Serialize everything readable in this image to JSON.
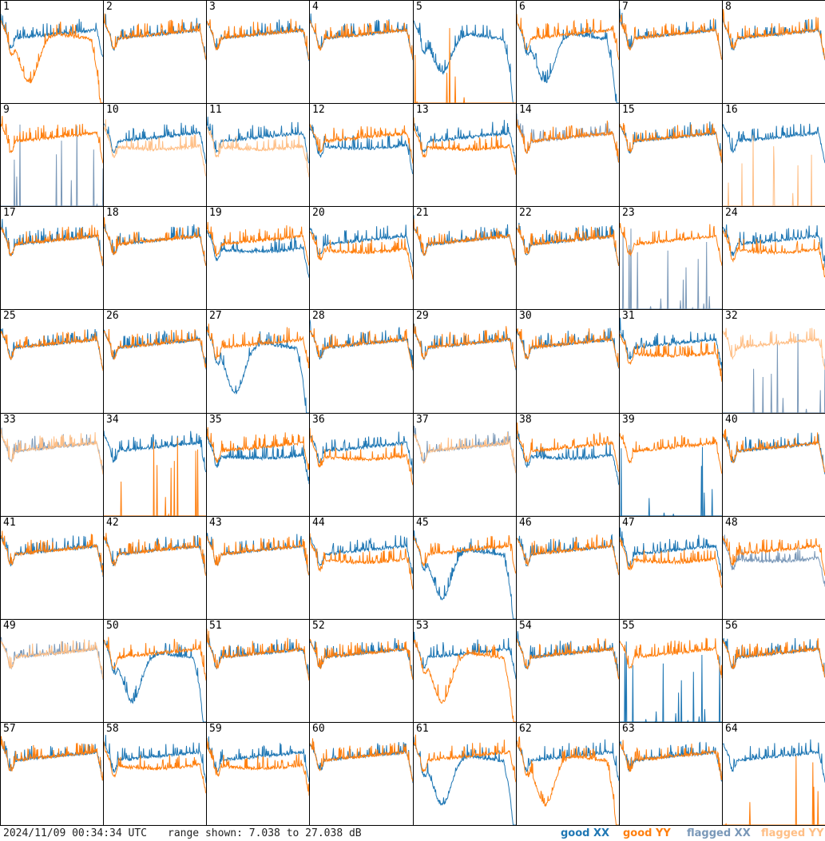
{
  "footer": {
    "timestamp": "2024/11/09 00:34:34 UTC",
    "range": "range shown: 7.038 to 27.038 dB"
  },
  "legend": {
    "good_xx": "good XX",
    "good_yy": "good YY",
    "flagged_xx": "flagged XX",
    "flagged_yy": "flagged YY"
  },
  "colors": {
    "good_xx": "#1f77b4",
    "good_yy": "#ff7f0e",
    "flagged_xx": "#7a98b8",
    "flagged_yy": "#ffbf86"
  },
  "chart_data": {
    "type": "line",
    "panel_grid": "8x8",
    "y_range_db": [
      7.038,
      27.038
    ],
    "panels": [
      {
        "label": "1",
        "xx": "good",
        "yy": "good",
        "shape": "yy_dip"
      },
      {
        "label": "2",
        "xx": "good",
        "yy": "good",
        "shape": "normal"
      },
      {
        "label": "3",
        "xx": "good",
        "yy": "good",
        "shape": "normal"
      },
      {
        "label": "4",
        "xx": "good",
        "yy": "good",
        "shape": "normal"
      },
      {
        "label": "5",
        "xx": "good",
        "yy": "good",
        "shape": "xx_dip_yy_dead"
      },
      {
        "label": "6",
        "xx": "good",
        "yy": "good",
        "shape": "xx_dip"
      },
      {
        "label": "7",
        "xx": "good",
        "yy": "good",
        "shape": "normal"
      },
      {
        "label": "8",
        "xx": "good",
        "yy": "good",
        "shape": "normal"
      },
      {
        "label": "9",
        "xx": "flagged",
        "yy": "good",
        "shape": "xx_dead"
      },
      {
        "label": "10",
        "xx": "good",
        "yy": "flagged",
        "shape": "yy_low"
      },
      {
        "label": "11",
        "xx": "good",
        "yy": "flagged",
        "shape": "yy_low"
      },
      {
        "label": "12",
        "xx": "good",
        "yy": "good",
        "shape": "xx_low"
      },
      {
        "label": "13",
        "xx": "good",
        "yy": "good",
        "shape": "yy_low"
      },
      {
        "label": "14",
        "xx": "flagged",
        "yy": "good",
        "shape": "normal"
      },
      {
        "label": "15",
        "xx": "good",
        "yy": "good",
        "shape": "normal"
      },
      {
        "label": "16",
        "xx": "good",
        "yy": "flagged",
        "shape": "yy_dead"
      },
      {
        "label": "17",
        "xx": "good",
        "yy": "good",
        "shape": "normal"
      },
      {
        "label": "18",
        "xx": "good",
        "yy": "good",
        "shape": "normal"
      },
      {
        "label": "19",
        "xx": "good",
        "yy": "good",
        "shape": "xx_low"
      },
      {
        "label": "20",
        "xx": "good",
        "yy": "good",
        "shape": "yy_low"
      },
      {
        "label": "21",
        "xx": "good",
        "yy": "good",
        "shape": "normal"
      },
      {
        "label": "22",
        "xx": "good",
        "yy": "good",
        "shape": "normal"
      },
      {
        "label": "23",
        "xx": "flagged",
        "yy": "good",
        "shape": "xx_dead"
      },
      {
        "label": "24",
        "xx": "good",
        "yy": "good",
        "shape": "yy_low"
      },
      {
        "label": "25",
        "xx": "good",
        "yy": "good",
        "shape": "normal"
      },
      {
        "label": "26",
        "xx": "good",
        "yy": "good",
        "shape": "normal"
      },
      {
        "label": "27",
        "xx": "good",
        "yy": "good",
        "shape": "xx_dip"
      },
      {
        "label": "28",
        "xx": "good",
        "yy": "good",
        "shape": "normal"
      },
      {
        "label": "29",
        "xx": "good",
        "yy": "good",
        "shape": "normal"
      },
      {
        "label": "30",
        "xx": "good",
        "yy": "good",
        "shape": "normal"
      },
      {
        "label": "31",
        "xx": "good",
        "yy": "good",
        "shape": "yy_low"
      },
      {
        "label": "32",
        "xx": "flagged",
        "yy": "flagged",
        "shape": "xx_dead"
      },
      {
        "label": "33",
        "xx": "flagged",
        "yy": "flagged",
        "shape": "normal"
      },
      {
        "label": "34",
        "xx": "good",
        "yy": "good",
        "shape": "yy_dead"
      },
      {
        "label": "35",
        "xx": "good",
        "yy": "good",
        "shape": "xx_low"
      },
      {
        "label": "36",
        "xx": "good",
        "yy": "good",
        "shape": "yy_low"
      },
      {
        "label": "37",
        "xx": "flagged",
        "yy": "flagged",
        "shape": "normal"
      },
      {
        "label": "38",
        "xx": "good",
        "yy": "good",
        "shape": "xx_low"
      },
      {
        "label": "39",
        "xx": "good",
        "yy": "good",
        "shape": "xx_dead"
      },
      {
        "label": "40",
        "xx": "good",
        "yy": "good",
        "shape": "normal"
      },
      {
        "label": "41",
        "xx": "good",
        "yy": "good",
        "shape": "normal"
      },
      {
        "label": "42",
        "xx": "good",
        "yy": "good",
        "shape": "normal"
      },
      {
        "label": "43",
        "xx": "good",
        "yy": "good",
        "shape": "normal"
      },
      {
        "label": "44",
        "xx": "good",
        "yy": "good",
        "shape": "yy_low"
      },
      {
        "label": "45",
        "xx": "good",
        "yy": "good",
        "shape": "xx_dip"
      },
      {
        "label": "46",
        "xx": "good",
        "yy": "good",
        "shape": "normal"
      },
      {
        "label": "47",
        "xx": "good",
        "yy": "good",
        "shape": "yy_low"
      },
      {
        "label": "48",
        "xx": "flagged",
        "yy": "good",
        "shape": "xx_low"
      },
      {
        "label": "49",
        "xx": "flagged",
        "yy": "flagged",
        "shape": "normal"
      },
      {
        "label": "50",
        "xx": "good",
        "yy": "good",
        "shape": "xx_dip"
      },
      {
        "label": "51",
        "xx": "good",
        "yy": "good",
        "shape": "normal"
      },
      {
        "label": "52",
        "xx": "good",
        "yy": "good",
        "shape": "normal"
      },
      {
        "label": "53",
        "xx": "good",
        "yy": "good",
        "shape": "yy_dip"
      },
      {
        "label": "54",
        "xx": "good",
        "yy": "good",
        "shape": "normal"
      },
      {
        "label": "55",
        "xx": "good",
        "yy": "good",
        "shape": "xx_dead"
      },
      {
        "label": "56",
        "xx": "good",
        "yy": "good",
        "shape": "normal"
      },
      {
        "label": "57",
        "xx": "good",
        "yy": "good",
        "shape": "normal"
      },
      {
        "label": "58",
        "xx": "good",
        "yy": "good",
        "shape": "yy_low"
      },
      {
        "label": "59",
        "xx": "good",
        "yy": "good",
        "shape": "yy_low"
      },
      {
        "label": "60",
        "xx": "good",
        "yy": "good",
        "shape": "normal"
      },
      {
        "label": "61",
        "xx": "good",
        "yy": "good",
        "shape": "xx_dip"
      },
      {
        "label": "62",
        "xx": "good",
        "yy": "good",
        "shape": "yy_dip"
      },
      {
        "label": "63",
        "xx": "good",
        "yy": "good",
        "shape": "normal"
      },
      {
        "label": "64",
        "xx": "good",
        "yy": "good",
        "shape": "yy_dead"
      }
    ]
  }
}
